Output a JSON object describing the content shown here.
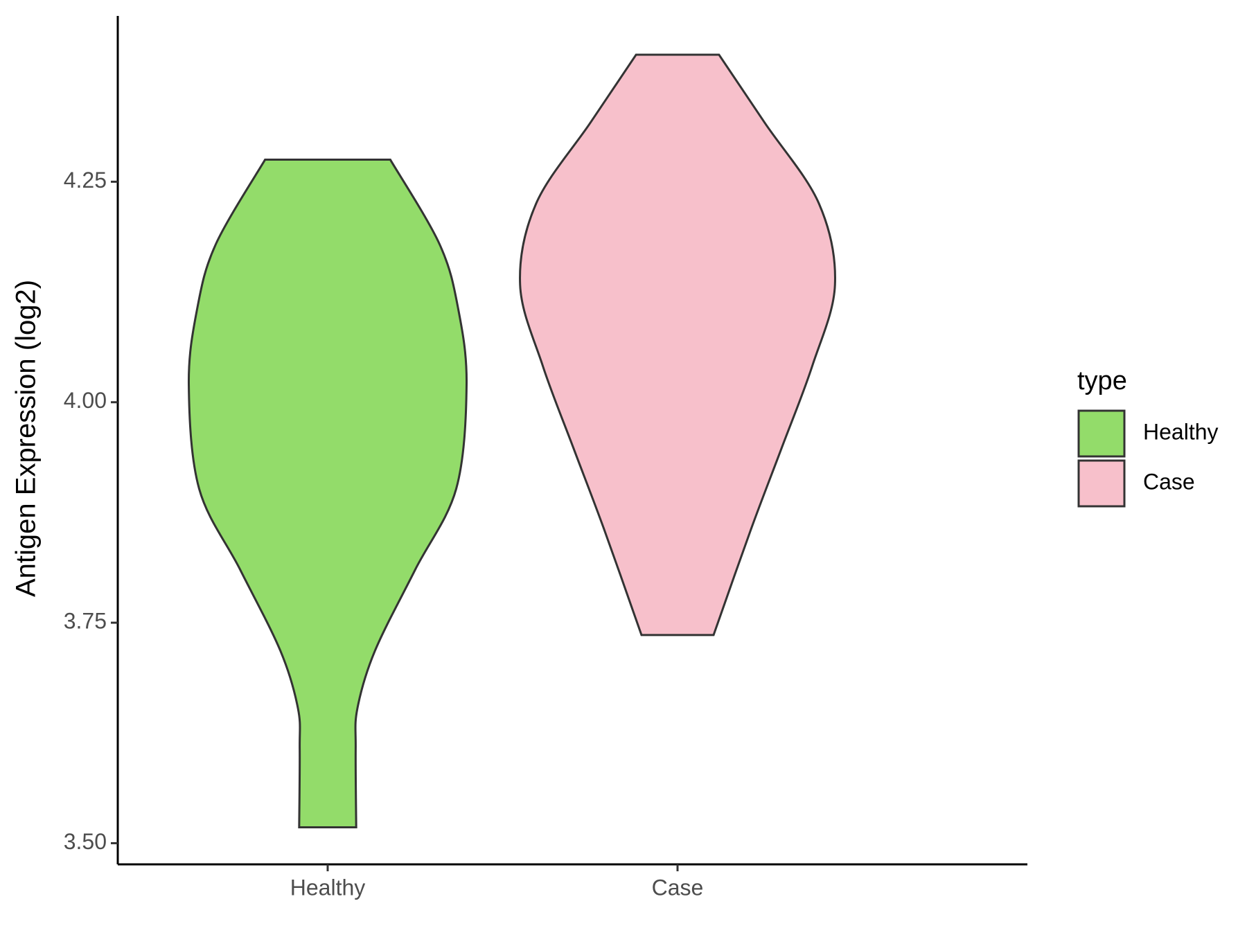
{
  "chart_data": {
    "type": "violin",
    "y_label": "Antigen Expression (log2)",
    "categories": [
      "Healthy",
      "Case"
    ],
    "series": [
      {
        "name": "Healthy",
        "color": "#93dc6a",
        "y": [
          3.518,
          3.607,
          3.653,
          3.718,
          3.81,
          3.902,
          4.02,
          4.105,
          4.179,
          4.275
        ],
        "widths": [
          0.163,
          0.16,
          0.17,
          0.27,
          0.5,
          0.735,
          0.794,
          0.747,
          0.64,
          0.358
        ]
      },
      {
        "name": "Case",
        "color": "#f7c0cb",
        "y": [
          3.736,
          3.856,
          3.948,
          4.041,
          4.133,
          4.225,
          4.317,
          4.394
        ],
        "widths": [
          0.206,
          0.42,
          0.595,
          0.77,
          0.9,
          0.809,
          0.498,
          0.237
        ]
      }
    ],
    "ylim": [
      3.476,
      4.438
    ],
    "yticks": [
      {
        "value": 3.5,
        "label": "3.50"
      },
      3.75,
      {
        "value": 4.0,
        "label": "4.00"
      },
      4.25
    ],
    "legend_title": "type",
    "legend_position": "right"
  }
}
